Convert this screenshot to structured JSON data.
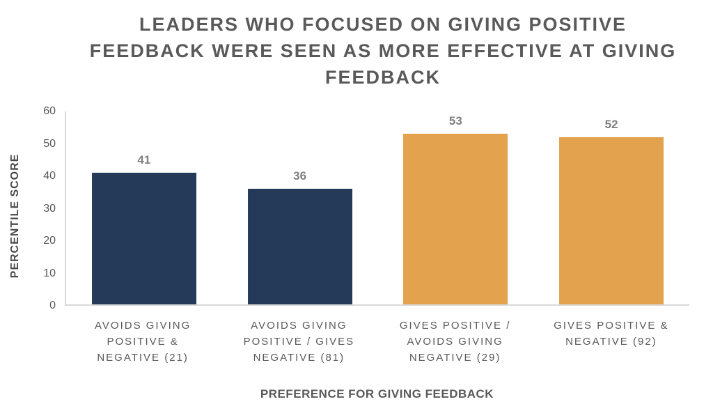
{
  "colors": {
    "bar-navy": "#253A58",
    "bar-orange": "#E2A24E",
    "title-text": "#595959",
    "axis-text": "#595959",
    "data-label-text": "#7F7F7F",
    "axis-line": "#D9D9D9",
    "background": "#FFFFFF"
  },
  "chart_data": {
    "type": "bar",
    "title": "LEADERS WHO FOCUSED ON GIVING POSITIVE FEEDBACK WERE SEEN AS MORE EFFECTIVE AT GIVING FEEDBACK",
    "xlabel": "PREFERENCE FOR GIVING FEEDBACK",
    "ylabel": "PERCENTILE SCORE",
    "ylim": [
      0,
      60
    ],
    "yticks": [
      0,
      10,
      20,
      30,
      40,
      50,
      60
    ],
    "grid": false,
    "legend": "none",
    "categories": [
      "AVOIDS GIVING POSITIVE & NEGATIVE (21)",
      "AVOIDS GIVING POSITIVE / GIVES NEGATIVE (81)",
      "GIVES POSITIVE / AVOIDS GIVING NEGATIVE (29)",
      "GIVES POSITIVE & NEGATIVE (92)"
    ],
    "category_display": [
      "AVOIDS GIVING\nPOSITIVE &\nNEGATIVE (21)",
      "AVOIDS GIVING\nPOSITIVE / GIVES\nNEGATIVE (81)",
      "GIVES POSITIVE /\nAVOIDS GIVING\nNEGATIVE (29)",
      "GIVES POSITIVE &\nNEGATIVE (92)"
    ],
    "values": [
      41,
      36,
      53,
      52
    ],
    "bar_colors": [
      "#253A58",
      "#253A58",
      "#E2A24E",
      "#E2A24E"
    ]
  }
}
